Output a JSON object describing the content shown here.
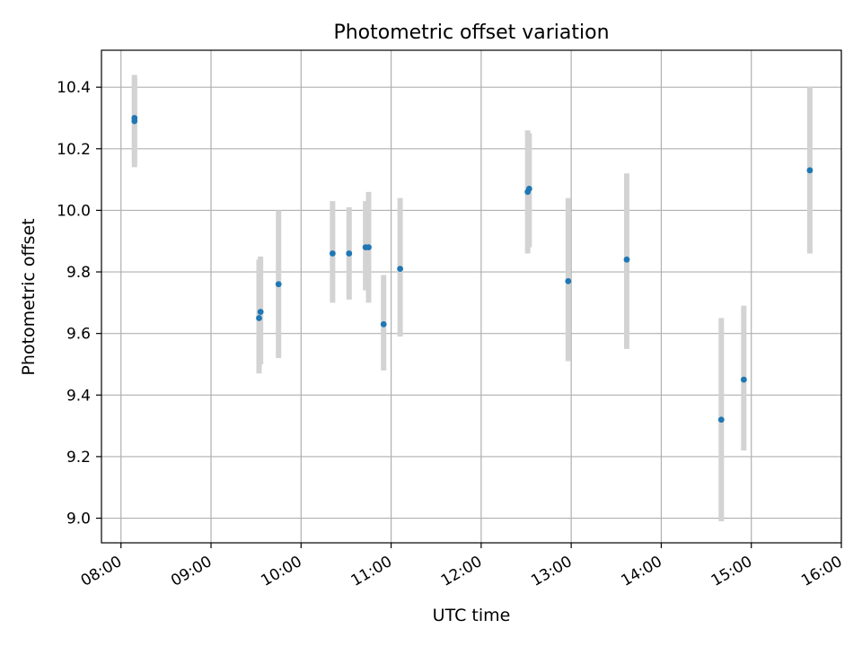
{
  "chart_data": {
    "type": "scatter",
    "title": "Photometric offset variation",
    "xlabel": "UTC time",
    "ylabel": "Photometric offset",
    "x_ticks": [
      "08:00",
      "09:00",
      "10:00",
      "11:00",
      "12:00",
      "13:00",
      "14:00",
      "15:00",
      "16:00"
    ],
    "y_ticks": [
      "9.0",
      "9.2",
      "9.4",
      "9.6",
      "9.8",
      "10.0",
      "10.2",
      "10.4"
    ],
    "xlim": [
      "07:47",
      "16:00"
    ],
    "ylim": [
      8.92,
      10.52
    ],
    "grid": true,
    "point_color": "#1f77b4",
    "errorbar_color": "#d3d3d3",
    "points": [
      {
        "x": "08:09",
        "y": 10.3,
        "low": 10.14,
        "high": 10.44
      },
      {
        "x": "08:09",
        "y": 10.29,
        "low": 10.15,
        "high": 10.43
      },
      {
        "x": "09:32",
        "y": 9.65,
        "low": 9.47,
        "high": 9.84
      },
      {
        "x": "09:33",
        "y": 9.67,
        "low": 9.5,
        "high": 9.85
      },
      {
        "x": "09:45",
        "y": 9.76,
        "low": 9.52,
        "high": 10.0
      },
      {
        "x": "10:21",
        "y": 9.86,
        "low": 9.7,
        "high": 10.03
      },
      {
        "x": "10:32",
        "y": 9.86,
        "low": 9.71,
        "high": 10.01
      },
      {
        "x": "10:43",
        "y": 9.88,
        "low": 9.74,
        "high": 10.03
      },
      {
        "x": "10:45",
        "y": 9.88,
        "low": 9.7,
        "high": 10.06
      },
      {
        "x": "10:55",
        "y": 9.63,
        "low": 9.48,
        "high": 9.79
      },
      {
        "x": "11:06",
        "y": 9.81,
        "low": 9.59,
        "high": 10.04
      },
      {
        "x": "12:31",
        "y": 10.06,
        "low": 9.86,
        "high": 10.26
      },
      {
        "x": "12:32",
        "y": 10.07,
        "low": 9.88,
        "high": 10.25
      },
      {
        "x": "12:58",
        "y": 9.77,
        "low": 9.51,
        "high": 10.04
      },
      {
        "x": "13:37",
        "y": 9.84,
        "low": 9.55,
        "high": 10.12
      },
      {
        "x": "14:40",
        "y": 9.32,
        "low": 8.99,
        "high": 9.65
      },
      {
        "x": "14:55",
        "y": 9.45,
        "low": 9.22,
        "high": 9.69
      },
      {
        "x": "15:39",
        "y": 10.13,
        "low": 9.86,
        "high": 10.4
      }
    ]
  }
}
